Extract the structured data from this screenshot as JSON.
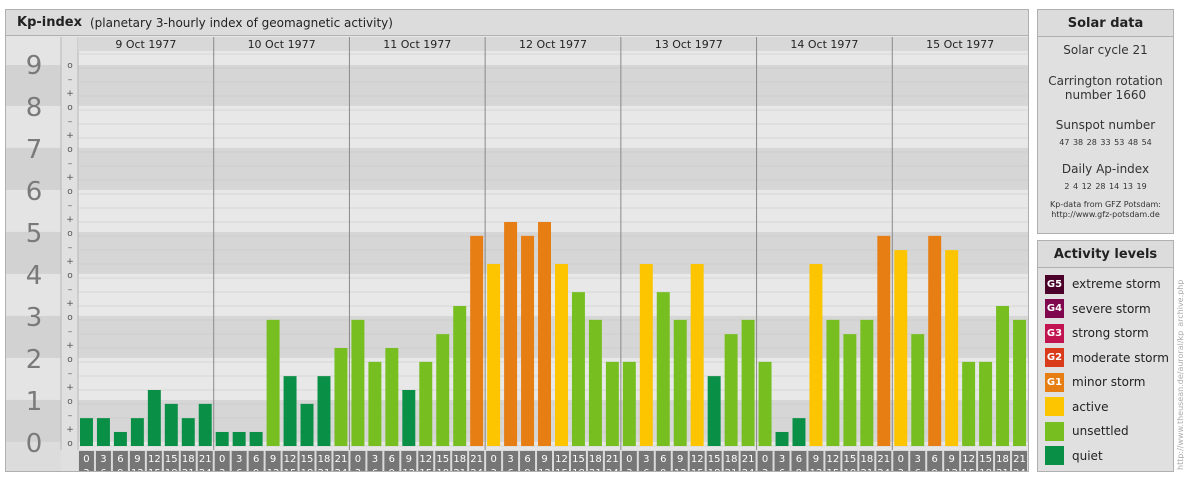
{
  "header": {
    "title": "Kp-index",
    "subtitle": "(planetary 3-hourly index of geomagnetic activity)"
  },
  "chart_data": {
    "type": "bar",
    "title": "Kp-index",
    "ylim": [
      0,
      9
    ],
    "y_ticks": [
      "0",
      "1",
      "2",
      "3",
      "4",
      "5",
      "6",
      "7",
      "8",
      "9"
    ],
    "sub_ticks": [
      "+",
      "o",
      "–"
    ],
    "days": [
      "9 Oct 1977",
      "10 Oct 1977",
      "11 Oct 1977",
      "12 Oct 1977",
      "13 Oct 1977",
      "14 Oct 1977",
      "15 Oct 1977"
    ],
    "interval_start": [
      "0",
      "3",
      "6",
      "9",
      "12",
      "15",
      "18",
      "21"
    ],
    "interval_end": [
      "3",
      "6",
      "9",
      "12",
      "15",
      "18",
      "21",
      "24"
    ],
    "values": [
      0.33,
      0.33,
      0.0,
      0.33,
      1.0,
      0.67,
      0.33,
      0.67,
      0.0,
      0.0,
      0.0,
      2.67,
      1.33,
      0.67,
      1.33,
      2.0,
      2.67,
      1.67,
      2.0,
      1.0,
      1.67,
      2.33,
      3.0,
      4.67,
      4.0,
      5.0,
      4.67,
      5.0,
      4.0,
      3.33,
      2.67,
      1.67,
      1.67,
      4.0,
      3.33,
      2.67,
      4.0,
      1.33,
      2.33,
      2.67,
      1.67,
      0.0,
      0.33,
      4.0,
      2.67,
      2.33,
      2.67,
      4.67,
      4.33,
      2.33,
      4.67,
      4.33,
      1.67,
      1.67,
      3.0,
      2.67
    ],
    "colors": {
      "quiet": "#0a8f46",
      "unsettled": "#77bf21",
      "active": "#fcc500",
      "minor": "#e67e14",
      "moderate": "#d93b1a",
      "strong": "#c0134f",
      "severe": "#80074e",
      "extreme": "#4a0028"
    }
  },
  "solar": {
    "title": "Solar data",
    "cycle": "Solar cycle 21",
    "carrington_line1": "Carrington rotation",
    "carrington_line2": "number 1660",
    "sunspot_label": "Sunspot number",
    "sunspot_values": "47  38  28  33  53  48  54",
    "ap_label": "Daily Ap-index",
    "ap_values": "2  4  12  28  14  13  19",
    "credit_line1": "Kp-data from GFZ Potsdam:",
    "credit_line2": "http://www.gfz-potsdam.de"
  },
  "levels": {
    "title": "Activity levels",
    "items": [
      {
        "code": "G5",
        "label": "extreme storm",
        "color": "#4a0028"
      },
      {
        "code": "G4",
        "label": "severe storm",
        "color": "#80074e"
      },
      {
        "code": "G3",
        "label": "strong storm",
        "color": "#c0134f"
      },
      {
        "code": "G2",
        "label": "moderate storm",
        "color": "#d93b1a"
      },
      {
        "code": "G1",
        "label": "minor storm",
        "color": "#e67e14"
      },
      {
        "code": "",
        "label": "active",
        "color": "#fcc500"
      },
      {
        "code": "",
        "label": "unsettled",
        "color": "#77bf21"
      },
      {
        "code": "",
        "label": "quiet",
        "color": "#0a8f46"
      }
    ]
  },
  "watermark": "http://www.theusean.de/auroral/kp_archive.php"
}
